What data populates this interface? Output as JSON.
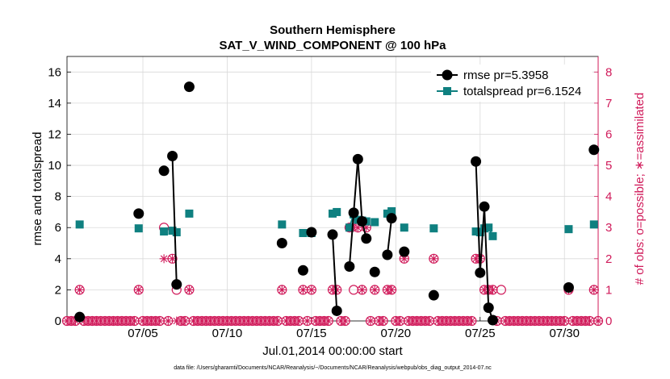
{
  "chart_data": {
    "type": "line",
    "title": "Southern Hemisphere",
    "subtitle": "SAT_V_WIND_COMPONENT @ 100 hPa",
    "xlabel": "Jul.01,2014 00:00:00 start",
    "ylabel": "rmse and totalspread",
    "y2label": "# of obs: o=possible; ∗=assimilated",
    "footnote": "data file: /Users/gharamti/Documents/NCAR/Reanalysis/~/Documents/NCAR/Reanalysis/webpub/obs_diag_output_2014-07.nc",
    "xlim": [
      0.0,
      31.5
    ],
    "ylim": [
      0,
      17
    ],
    "y2lim": [
      0,
      8.5
    ],
    "xticks": [
      4.5,
      9.5,
      14.5,
      19.5,
      24.5,
      29.5
    ],
    "xtick_labels": [
      "07/05",
      "07/10",
      "07/15",
      "07/20",
      "07/25",
      "07/30"
    ],
    "yticks": [
      0,
      2,
      4,
      6,
      8,
      10,
      12,
      14,
      16
    ],
    "ytick_labels": [
      "0",
      "2",
      "4",
      "6",
      "8",
      "10",
      "12",
      "14",
      "16"
    ],
    "y2ticks": [
      0,
      1,
      2,
      3,
      4,
      5,
      6,
      7,
      8
    ],
    "y2tick_labels": [
      "0",
      "1",
      "2",
      "3",
      "4",
      "5",
      "6",
      "7",
      "8"
    ],
    "grid": true,
    "legend_position": "top-right",
    "colors": {
      "rmse": "#000000",
      "spread": "#0f8080",
      "obs": "#d01a5a",
      "grid": "#d9d9d9"
    },
    "series": [
      {
        "name": "rmse pr=5.3958",
        "values": [
          [
            0.75,
            0.25
          ],
          [
            4.25,
            6.9
          ],
          [
            5.75,
            9.65
          ],
          [
            6.25,
            10.6
          ],
          [
            6.5,
            2.35
          ],
          [
            7.25,
            15.05
          ],
          [
            12.75,
            5.0
          ],
          [
            14.0,
            3.25
          ],
          [
            14.5,
            5.7
          ],
          [
            15.75,
            5.55
          ],
          [
            16.0,
            0.65
          ],
          [
            16.75,
            3.5
          ],
          [
            17.0,
            6.95
          ],
          [
            17.25,
            10.4
          ],
          [
            17.5,
            6.4
          ],
          [
            17.75,
            5.3
          ],
          [
            18.25,
            3.15
          ],
          [
            19.0,
            4.25
          ],
          [
            19.25,
            6.6
          ],
          [
            20.0,
            4.45
          ],
          [
            21.75,
            1.65
          ],
          [
            24.25,
            10.25
          ],
          [
            24.5,
            3.1
          ],
          [
            24.75,
            7.35
          ],
          [
            25.0,
            0.85
          ],
          [
            25.25,
            0.05
          ],
          [
            29.75,
            2.15
          ],
          [
            31.25,
            11.0
          ]
        ]
      },
      {
        "name": "totalspread pr=6.1524",
        "values": [
          [
            0.75,
            6.2
          ],
          [
            4.25,
            5.95
          ],
          [
            5.75,
            5.75
          ],
          [
            6.25,
            5.8
          ],
          [
            6.5,
            5.7
          ],
          [
            7.25,
            6.9
          ],
          [
            12.75,
            6.2
          ],
          [
            14.0,
            5.65
          ],
          [
            14.5,
            5.65
          ],
          [
            15.75,
            6.9
          ],
          [
            16.0,
            7.0
          ],
          [
            16.75,
            6.0
          ],
          [
            17.0,
            6.85
          ],
          [
            17.25,
            6.5
          ],
          [
            17.5,
            6.45
          ],
          [
            17.75,
            6.4
          ],
          [
            18.25,
            6.35
          ],
          [
            19.0,
            6.9
          ],
          [
            19.25,
            7.05
          ],
          [
            20.0,
            6.0
          ],
          [
            21.75,
            5.95
          ],
          [
            24.25,
            5.75
          ],
          [
            24.5,
            5.7
          ],
          [
            24.75,
            5.95
          ],
          [
            25.0,
            6.0
          ],
          [
            25.25,
            5.45
          ],
          [
            29.75,
            5.9
          ],
          [
            31.25,
            6.2
          ]
        ]
      },
      {
        "name": "possible",
        "values": [
          [
            0.75,
            1
          ],
          [
            4.25,
            1
          ],
          [
            5.75,
            3
          ],
          [
            6.25,
            2
          ],
          [
            6.5,
            1
          ],
          [
            7.25,
            1
          ],
          [
            12.75,
            1
          ],
          [
            14.0,
            1
          ],
          [
            14.5,
            1
          ],
          [
            15.75,
            1
          ],
          [
            16.0,
            1
          ],
          [
            16.75,
            3
          ],
          [
            17.0,
            1
          ],
          [
            17.25,
            3
          ],
          [
            17.5,
            1
          ],
          [
            17.75,
            3
          ],
          [
            18.25,
            1
          ],
          [
            19.0,
            1
          ],
          [
            19.25,
            1
          ],
          [
            20.0,
            2
          ],
          [
            21.75,
            2
          ],
          [
            24.25,
            2
          ],
          [
            24.5,
            2
          ],
          [
            24.75,
            1
          ],
          [
            25.0,
            1
          ],
          [
            25.25,
            1
          ],
          [
            25.75,
            1
          ],
          [
            29.75,
            1
          ],
          [
            31.25,
            1
          ]
        ]
      },
      {
        "name": "assimilated",
        "values": [
          [
            0.75,
            1
          ],
          [
            4.25,
            1
          ],
          [
            5.75,
            2
          ],
          [
            6.25,
            2
          ],
          [
            6.5,
            0
          ],
          [
            7.25,
            1
          ],
          [
            12.75,
            1
          ],
          [
            14.0,
            1
          ],
          [
            14.5,
            1
          ],
          [
            15.75,
            1
          ],
          [
            16.0,
            1
          ],
          [
            16.75,
            3
          ],
          [
            17.0,
            3
          ],
          [
            17.25,
            3
          ],
          [
            17.5,
            1
          ],
          [
            17.75,
            3
          ],
          [
            18.25,
            1
          ],
          [
            19.0,
            1
          ],
          [
            19.25,
            1
          ],
          [
            20.0,
            2
          ],
          [
            21.75,
            2
          ],
          [
            24.25,
            2
          ],
          [
            24.5,
            2
          ],
          [
            24.75,
            1
          ],
          [
            25.0,
            1
          ],
          [
            25.25,
            1
          ],
          [
            29.75,
            1
          ],
          [
            31.25,
            1
          ]
        ]
      }
    ],
    "obs_zero_x": [
      0.0,
      0.25,
      0.5,
      1.0,
      1.25,
      1.5,
      1.75,
      2.0,
      2.25,
      2.5,
      2.75,
      3.0,
      3.25,
      3.5,
      3.75,
      4.0,
      4.5,
      4.75,
      5.0,
      5.25,
      5.5,
      6.0,
      6.75,
      7.0,
      7.5,
      7.75,
      8.0,
      8.25,
      8.5,
      8.75,
      9.0,
      9.25,
      9.5,
      9.75,
      10.0,
      10.25,
      10.5,
      10.75,
      11.0,
      11.25,
      11.5,
      11.75,
      12.0,
      12.25,
      12.5,
      13.0,
      13.25,
      13.5,
      13.75,
      14.25,
      14.75,
      15.0,
      15.25,
      15.5,
      16.25,
      16.5,
      18.0,
      18.5,
      18.75,
      19.5,
      19.75,
      20.25,
      20.5,
      20.75,
      21.0,
      21.25,
      21.5,
      22.0,
      22.25,
      22.5,
      22.75,
      23.0,
      23.25,
      23.5,
      23.75,
      24.0,
      25.5,
      26.0,
      26.25,
      26.5,
      26.75,
      27.0,
      27.25,
      27.5,
      27.75,
      28.0,
      28.25,
      28.5,
      28.75,
      29.0,
      29.25,
      29.5,
      30.0,
      30.25,
      30.5,
      30.75,
      31.0,
      31.5
    ]
  }
}
